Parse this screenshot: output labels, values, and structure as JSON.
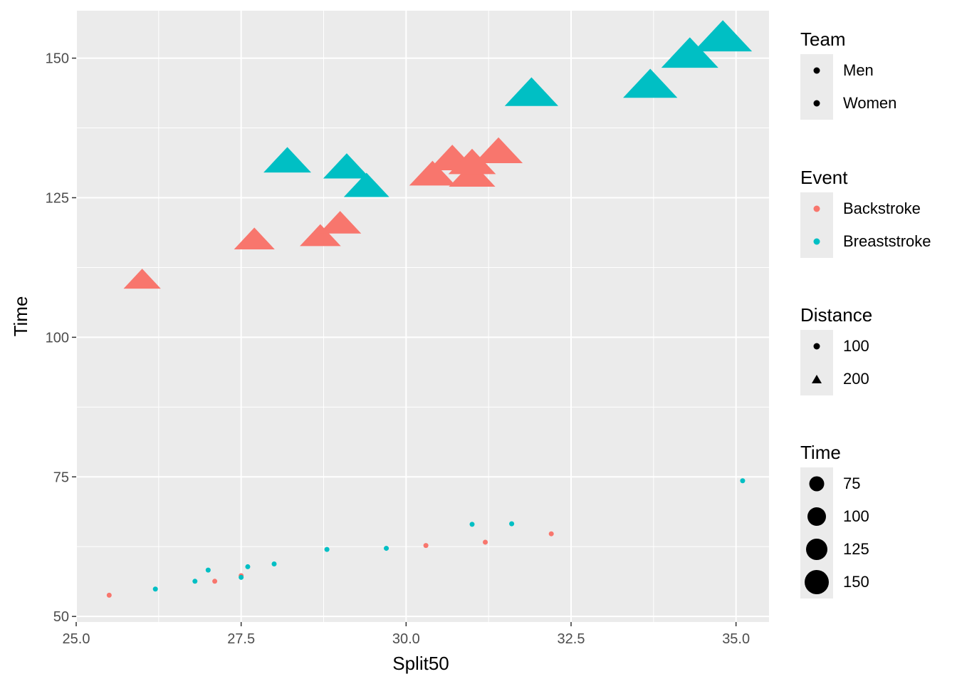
{
  "chart_data": {
    "type": "scatter",
    "xlabel": "Split50",
    "ylabel": "Time",
    "xlim": [
      25.0,
      35.5
    ],
    "ylim": [
      49.0,
      158.5
    ],
    "x_ticks": [
      "25.0",
      "27.5",
      "30.0",
      "32.5",
      "35.0"
    ],
    "y_ticks": [
      "50",
      "75",
      "100",
      "125",
      "150"
    ],
    "grid": true,
    "legend_position": "right",
    "colors": {
      "Backstroke": "#F8766D",
      "Breaststroke": "#00BFC4",
      "panel": "#EBEBEB",
      "grid": "#FFFFFF"
    },
    "shape_mapping": {
      "100": "circle",
      "200": "triangle"
    },
    "series": [
      {
        "event": "Backstroke",
        "distance": "100",
        "points": [
          [
            25.5,
            53.8
          ],
          [
            27.1,
            56.3
          ],
          [
            27.5,
            57.3
          ],
          [
            30.3,
            62.7
          ],
          [
            31.2,
            63.3
          ],
          [
            32.2,
            64.8
          ]
        ]
      },
      {
        "event": "Breaststroke",
        "distance": "100",
        "points": [
          [
            26.2,
            54.9
          ],
          [
            26.8,
            56.3
          ],
          [
            27.0,
            58.3
          ],
          [
            27.5,
            57.0
          ],
          [
            27.6,
            58.9
          ],
          [
            28.0,
            59.4
          ],
          [
            28.8,
            62.0
          ],
          [
            29.7,
            62.2
          ],
          [
            31.0,
            66.5
          ],
          [
            31.6,
            66.6
          ],
          [
            35.1,
            74.3
          ]
        ]
      },
      {
        "event": "Backstroke",
        "distance": "200",
        "points": [
          [
            26.0,
            110.5
          ],
          [
            27.7,
            117.7
          ],
          [
            28.7,
            118.3
          ],
          [
            29.0,
            120.6
          ],
          [
            30.4,
            129.4
          ],
          [
            30.7,
            132.2
          ],
          [
            31.0,
            129.2
          ],
          [
            31.0,
            131.5
          ],
          [
            31.4,
            133.5
          ]
        ]
      },
      {
        "event": "Breaststroke",
        "distance": "200",
        "points": [
          [
            28.2,
            131.8
          ],
          [
            29.1,
            130.7
          ],
          [
            29.4,
            127.3
          ],
          [
            31.9,
            144.0
          ],
          [
            33.7,
            145.5
          ],
          [
            34.3,
            151.0
          ],
          [
            34.8,
            154.0
          ]
        ]
      }
    ]
  },
  "legends": {
    "team": {
      "title": "Team",
      "items": [
        "Men",
        "Women"
      ]
    },
    "event": {
      "title": "Event",
      "items": [
        "Backstroke",
        "Breaststroke"
      ]
    },
    "distance": {
      "title": "Distance",
      "items": [
        "100",
        "200"
      ]
    },
    "time": {
      "title": "Time",
      "items": [
        "75",
        "100",
        "125",
        "150"
      ]
    }
  }
}
